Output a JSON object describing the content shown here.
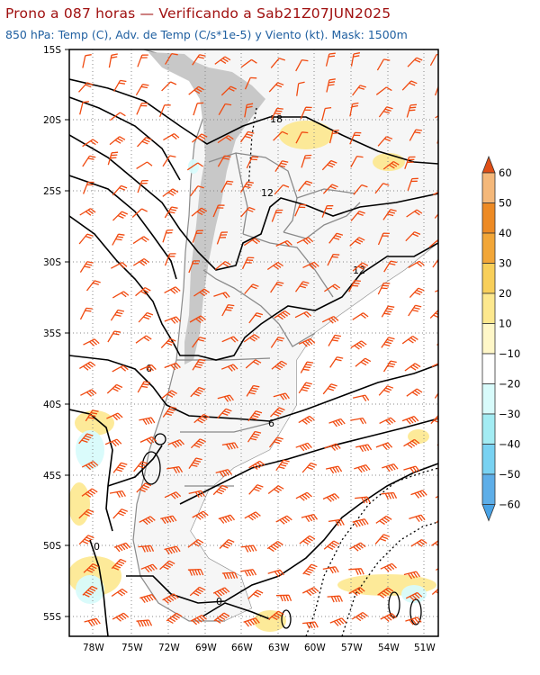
{
  "title": "Prono a 087 horas — Verificando a Sab21Z07JUN2025",
  "subtitle": "850 hPa: Temp (C), Adv. de Temp (C/s*1e-5) y Viento (kt). Mask: 1500m",
  "lat_labels": [
    "15S",
    "20S",
    "25S",
    "30S",
    "35S",
    "40S",
    "45S",
    "50S",
    "55S"
  ],
  "lon_labels": [
    "78W",
    "75W",
    "72W",
    "69W",
    "66W",
    "63W",
    "60W",
    "57W",
    "54W",
    "51W"
  ],
  "colorbar": {
    "labels": [
      "60",
      "50",
      "40",
      "30",
      "20",
      "10",
      "−10",
      "−20",
      "−30",
      "−40",
      "−50",
      "−60"
    ],
    "colors": [
      "#f4b87a",
      "#ed8a24",
      "#f2a638",
      "#f8cf5a",
      "#fde88e",
      "#fff7c8",
      "#ffffff",
      "#d8fbfb",
      "#a3ecf3",
      "#79d2f2",
      "#5eaee8",
      "#3f8ed8",
      "#2f74c4"
    ],
    "top_tip": "#e04f16",
    "bottom_tip": "#49a3e6"
  },
  "contour_labels": [
    "18",
    "12",
    "12",
    "6",
    "6",
    "0",
    "0"
  ],
  "colors": {
    "mask": "#c8c8c8",
    "land": "#f5f5f5",
    "border": "#8a8a8a",
    "contour": "#000000",
    "wind": "#f04a10",
    "warm": "#fde88e",
    "cold": "#d8fbfb"
  }
}
